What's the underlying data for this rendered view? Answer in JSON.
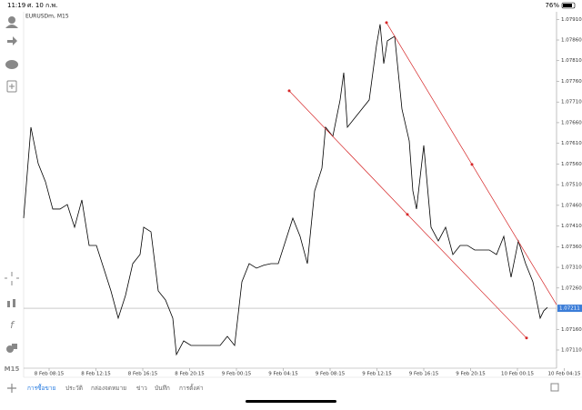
{
  "status_bar": {
    "time": "11:19",
    "date": "ศ. 10 ก.พ.",
    "battery": "76%"
  },
  "sidebar": {
    "timeframe": "M15"
  },
  "chart_data": {
    "type": "line",
    "title": "EURUSDm, M15",
    "x": [
      0,
      2,
      4,
      6,
      8,
      10,
      12,
      14,
      16,
      18,
      20,
      22,
      24,
      26,
      28,
      30,
      32,
      33,
      35,
      37,
      39,
      41,
      42,
      44,
      46,
      48,
      50,
      52,
      54,
      56,
      58,
      60,
      62,
      64,
      66,
      68,
      70,
      72,
      74,
      76,
      78,
      80,
      82,
      83,
      85,
      87,
      88,
      89,
      91,
      93,
      95,
      97,
      98,
      99,
      100,
      102,
      104,
      106,
      107,
      108,
      110,
      112,
      114,
      116,
      118,
      120,
      122,
      124,
      126,
      128,
      130,
      132,
      134,
      136,
      138,
      140,
      142,
      143,
      144
    ],
    "series": [
      {
        "name": "EURUSDm",
        "color": "#000000",
        "values": [
          1.07429,
          1.07649,
          1.07561,
          1.07517,
          1.07451,
          1.07451,
          1.07462,
          1.07407,
          1.07473,
          1.07363,
          1.07363,
          1.07308,
          1.07253,
          1.07187,
          1.07242,
          1.07319,
          1.07341,
          1.07407,
          1.07396,
          1.07253,
          1.07231,
          1.07187,
          1.07099,
          1.07132,
          1.07121,
          1.07121,
          1.07121,
          1.07121,
          1.07121,
          1.07143,
          1.07121,
          1.07275,
          1.07319,
          1.07308,
          1.07315,
          1.07319,
          1.07319,
          1.07374,
          1.07429,
          1.07385,
          1.07319,
          1.07495,
          1.0755,
          1.07649,
          1.07627,
          1.07715,
          1.07781,
          1.07649,
          1.07671,
          1.07693,
          1.07715,
          1.07847,
          1.07898,
          1.07803,
          1.07858,
          1.07869,
          1.07693,
          1.07616,
          1.07495,
          1.07451,
          1.07605,
          1.07407,
          1.07374,
          1.07407,
          1.07341,
          1.07363,
          1.07363,
          1.07352,
          1.07352,
          1.07352,
          1.07341,
          1.07385,
          1.07286,
          1.07374,
          1.07319,
          1.07275,
          1.07187,
          1.07205,
          1.07213
        ]
      }
    ],
    "current_price": 1.07211,
    "xlim": [
      0,
      146.5
    ],
    "xticks": [
      {
        "value": 7,
        "label": "8 Feb 08:15"
      },
      {
        "value": 19.875,
        "label": "8 Feb 12:15"
      },
      {
        "value": 32.75,
        "label": "8 Feb 16:15"
      },
      {
        "value": 45.625,
        "label": "8 Feb 20:15"
      },
      {
        "value": 58.5,
        "label": "9 Feb 00:15"
      },
      {
        "value": 71.375,
        "label": "9 Feb 04:15"
      },
      {
        "value": 84.25,
        "label": "9 Feb 08:15"
      },
      {
        "value": 97.125,
        "label": "9 Feb 12:15"
      },
      {
        "value": 110,
        "label": "9 Feb 16:15"
      },
      {
        "value": 122.875,
        "label": "9 Feb 20:15"
      },
      {
        "value": 135.75,
        "label": "10 Feb 00:15"
      },
      {
        "value": 148.625,
        "label": "10 Feb 04:15"
      }
    ],
    "ylim": [
      1.07066,
      1.07926
    ],
    "yticks": [
      {
        "value": 1.0711,
        "label": "1.07110"
      },
      {
        "value": 1.0716,
        "label": "1.07160"
      },
      {
        "value": 1.0726,
        "label": "1.07260"
      },
      {
        "value": 1.0731,
        "label": "1.07310"
      },
      {
        "value": 1.0736,
        "label": "1.07360"
      },
      {
        "value": 1.0741,
        "label": "1.07410"
      },
      {
        "value": 1.0746,
        "label": "1.07460"
      },
      {
        "value": 1.0751,
        "label": "1.07510"
      },
      {
        "value": 1.0756,
        "label": "1.07560"
      },
      {
        "value": 1.0761,
        "label": "1.07610"
      },
      {
        "value": 1.0766,
        "label": "1.07660"
      },
      {
        "value": 1.0771,
        "label": "1.07710"
      },
      {
        "value": 1.0776,
        "label": "1.07760"
      },
      {
        "value": 1.0781,
        "label": "1.07810"
      },
      {
        "value": 1.0786,
        "label": "1.07860"
      },
      {
        "value": 1.0791,
        "label": "1.07910"
      }
    ],
    "trend_lines": [
      {
        "color": "#d62728",
        "x": [
          73,
          105.5,
          138.25
        ],
        "values": [
          1.07737,
          1.07438,
          1.07139
        ],
        "extend": false
      },
      {
        "color": "#d62728",
        "x": [
          99.75,
          123.25
        ],
        "values": [
          1.07902,
          1.07559
        ],
        "extend": true
      }
    ]
  },
  "tabs": [
    "การซื้อขาย",
    "ประวัติ",
    "กล่องจดหมาย",
    "ข่าว",
    "บันทึก",
    "การตั้งค่า"
  ],
  "active_tab": 0
}
